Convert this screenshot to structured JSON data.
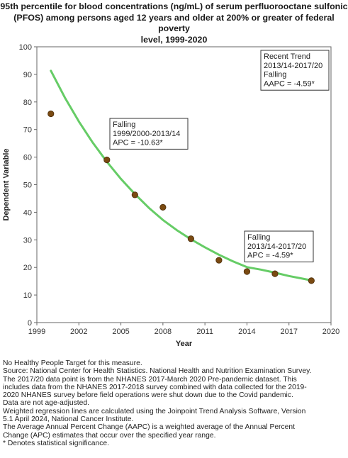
{
  "title_lines": [
    "95th percentile for blood concentrations (ng/mL) of serum perfluorooctane sulfonic",
    "(PFOS) among persons aged 12 years and older at 200% or greater of federal poverty",
    "level, 1999-2020"
  ],
  "chart_data": {
    "type": "scatter",
    "xlabel": "Year",
    "ylabel": "Dependent Variable",
    "xlim": [
      1999,
      2020
    ],
    "ylim": [
      0,
      100
    ],
    "x_ticks": [
      "1999",
      "2002",
      "2005",
      "2008",
      "2011",
      "2014",
      "2017",
      "2020"
    ],
    "y_ticks": [
      "0",
      "10",
      "20",
      "30",
      "40",
      "50",
      "60",
      "70",
      "80",
      "90",
      "100"
    ],
    "grid": false,
    "series": [
      {
        "kind": "observed-points",
        "color": "#7a4a12",
        "points": [
          {
            "x": 2000,
            "y": 75.7
          },
          {
            "x": 2004,
            "y": 59.0
          },
          {
            "x": 2006,
            "y": 46.3
          },
          {
            "x": 2008,
            "y": 41.8
          },
          {
            "x": 2010,
            "y": 30.4
          },
          {
            "x": 2012,
            "y": 22.6
          },
          {
            "x": 2014,
            "y": 18.5
          },
          {
            "x": 2016,
            "y": 17.7
          },
          {
            "x": 2018.6,
            "y": 15.2
          }
        ]
      },
      {
        "kind": "fitted-trend-line",
        "color": "#66cc66",
        "points": [
          {
            "x": 2000,
            "y": 91.3
          },
          {
            "x": 2001,
            "y": 81.6
          },
          {
            "x": 2002,
            "y": 72.9
          },
          {
            "x": 2003,
            "y": 65.2
          },
          {
            "x": 2004,
            "y": 58.3
          },
          {
            "x": 2005,
            "y": 52.1
          },
          {
            "x": 2006,
            "y": 46.6
          },
          {
            "x": 2007,
            "y": 41.6
          },
          {
            "x": 2008,
            "y": 37.2
          },
          {
            "x": 2009,
            "y": 33.5
          },
          {
            "x": 2010,
            "y": 30.2
          },
          {
            "x": 2011,
            "y": 27.3
          },
          {
            "x": 2012,
            "y": 24.6
          },
          {
            "x": 2013,
            "y": 22.2
          },
          {
            "x": 2014,
            "y": 20.1
          },
          {
            "x": 2015,
            "y": 19.2
          },
          {
            "x": 2016,
            "y": 18.1
          },
          {
            "x": 2017,
            "y": 16.9
          },
          {
            "x": 2018,
            "y": 15.9
          },
          {
            "x": 2018.6,
            "y": 15.3
          }
        ]
      }
    ],
    "annotations": [
      {
        "id": "recent-trend",
        "lines": [
          "Recent Trend",
          "2013/14-2017/20",
          "Falling",
          "AAPC = -4.59*"
        ]
      },
      {
        "id": "segment-1",
        "lines": [
          "Falling",
          "1999/2000-2013/14",
          "APC = -10.63*"
        ]
      },
      {
        "id": "segment-2",
        "lines": [
          "Falling",
          "2013/14-2017/20",
          "APC = -4.59*"
        ]
      }
    ]
  },
  "footnotes": [
    "No Healthy People Target for this measure.",
    "Source: National Center for Health Statistics. National Health and Nutrition Examination Survey.",
    "The 2017/20 data point is from the NHANES 2017-March 2020 Pre-pandemic dataset. This",
    "includes data from the NHANES 2017-2018 survey combined with data collected for the 2019-",
    "2020 NHANES survey before field operations were shut down due to the Covid pandemic.",
    "Data are not age-adjusted.",
    "Weighted regression lines are calculated using the Joinpoint Trend Analysis Software, Version",
    "5.1 April 2024, National Cancer Institute.",
    "The Average Annual Percent Change (AAPC) is a weighted average of the Annual Percent",
    "Change (APC) estimates that occur over the specified year range.",
    "* Denotes statistical significance."
  ]
}
